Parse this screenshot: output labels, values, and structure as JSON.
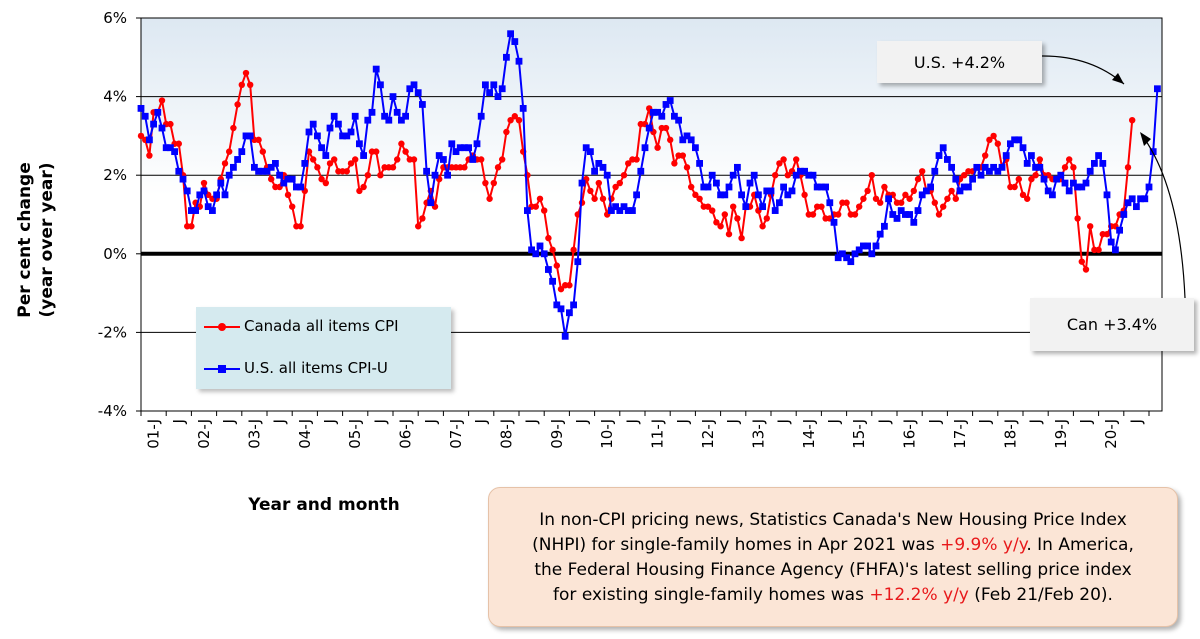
{
  "chart_data": {
    "type": "line",
    "ylabel_lines": [
      "Per cent change",
      "(year over year)"
    ],
    "xlabel": "Year and month",
    "ylim": [
      -4,
      6
    ],
    "ytick_labels": [
      "-4%",
      "-2%",
      "0%",
      "2%",
      "4%",
      "6%"
    ],
    "x_tick_labels": [
      "01-J",
      "02-J",
      "03-J",
      "04-J",
      "05-J",
      "06-J",
      "07-J",
      "08-J",
      "09-J",
      "10-J",
      "11-J",
      "12-J",
      "13-J",
      "14-J",
      "15-J",
      "16-J",
      "17-J",
      "18-J",
      "19-J",
      "20-J",
      "21-J"
    ],
    "x_minor_label": "J",
    "start": "2001-01",
    "end": "2021-04",
    "series": [
      {
        "name": "Canada all items CPI",
        "color": "#ff0000",
        "marker": "circle",
        "values": [
          3.0,
          2.9,
          2.5,
          3.6,
          3.6,
          3.9,
          3.3,
          3.3,
          2.8,
          2.8,
          2.0,
          0.7,
          0.7,
          1.3,
          1.2,
          1.8,
          1.5,
          1.4,
          1.4,
          1.9,
          2.3,
          2.6,
          3.2,
          3.8,
          4.3,
          4.6,
          4.3,
          2.9,
          2.9,
          2.6,
          2.2,
          1.9,
          1.7,
          1.7,
          2.0,
          1.5,
          1.2,
          0.7,
          0.7,
          1.6,
          2.6,
          2.4,
          2.2,
          1.9,
          1.8,
          2.3,
          2.4,
          2.1,
          2.1,
          2.1,
          2.3,
          2.4,
          1.6,
          1.7,
          2.0,
          2.6,
          2.6,
          2.0,
          2.2,
          2.2,
          2.2,
          2.4,
          2.8,
          2.6,
          2.4,
          2.4,
          0.7,
          0.9,
          1.3,
          1.6,
          1.2,
          1.9,
          2.2,
          2.2,
          2.2,
          2.2,
          2.2,
          2.2,
          2.4,
          2.5,
          2.4,
          2.4,
          1.8,
          1.4,
          1.8,
          2.2,
          2.4,
          3.1,
          3.4,
          3.5,
          3.4,
          2.6,
          2.0,
          1.2,
          1.2,
          1.4,
          1.1,
          0.4,
          0.1,
          -0.3,
          -0.9,
          -0.8,
          -0.8,
          0.1,
          1.0,
          1.3,
          1.9,
          1.6,
          1.4,
          1.8,
          1.4,
          1.0,
          1.4,
          1.7,
          1.8,
          2.0,
          2.3,
          2.4,
          2.4,
          3.3,
          3.3,
          3.7,
          3.1,
          2.7,
          3.2,
          3.2,
          2.9,
          2.3,
          2.5,
          2.5,
          2.2,
          1.7,
          1.5,
          1.4,
          1.2,
          1.2,
          1.1,
          0.8,
          0.7,
          1.0,
          0.5,
          1.2,
          0.9,
          0.4,
          1.2,
          1.2,
          1.5,
          1.1,
          0.7,
          0.9,
          1.5,
          2.0,
          2.3,
          2.4,
          2.0,
          2.1,
          2.4,
          2.0,
          1.5,
          1.0,
          1.0,
          1.2,
          1.2,
          0.9,
          0.9,
          1.0,
          1.0,
          1.3,
          1.3,
          1.0,
          1.0,
          1.2,
          1.4,
          1.6,
          2.0,
          1.4,
          1.3,
          1.7,
          1.5,
          1.5,
          1.3,
          1.3,
          1.5,
          1.4,
          1.6,
          1.9,
          2.1,
          1.6,
          1.6,
          1.3,
          1.0,
          1.2,
          1.4,
          1.6,
          1.4,
          1.9,
          2.0,
          2.1,
          2.1,
          2.2,
          2.2,
          2.5,
          2.9,
          3.0,
          2.8,
          2.2,
          2.4,
          1.7,
          1.7,
          1.9,
          1.5,
          1.4,
          1.9,
          2.0,
          2.4,
          2.0,
          2.0,
          1.9,
          1.9,
          1.9,
          2.2,
          2.4,
          2.2,
          0.9,
          -0.2,
          -0.4,
          0.7,
          0.1,
          0.1,
          0.5,
          0.5,
          0.7,
          0.7,
          1.0,
          1.1,
          2.2,
          3.4
        ]
      },
      {
        "name": "U.S. all items CPI-U",
        "color": "#0000ff",
        "marker": "square",
        "values": [
          3.7,
          3.5,
          2.9,
          3.3,
          3.6,
          3.2,
          2.7,
          2.7,
          2.6,
          2.1,
          1.9,
          1.6,
          1.1,
          1.1,
          1.5,
          1.6,
          1.2,
          1.1,
          1.5,
          1.8,
          1.5,
          2.0,
          2.2,
          2.4,
          2.6,
          3.0,
          3.0,
          2.2,
          2.1,
          2.1,
          2.1,
          2.2,
          2.3,
          2.0,
          1.8,
          1.9,
          1.9,
          1.7,
          1.7,
          2.3,
          3.1,
          3.3,
          3.0,
          2.7,
          2.5,
          3.2,
          3.5,
          3.3,
          3.0,
          3.0,
          3.1,
          3.5,
          2.8,
          2.5,
          3.4,
          3.6,
          4.7,
          4.3,
          3.5,
          3.4,
          4.0,
          3.6,
          3.4,
          3.5,
          4.2,
          4.3,
          4.1,
          3.8,
          2.1,
          1.3,
          2.0,
          2.5,
          2.4,
          2.0,
          2.8,
          2.6,
          2.7,
          2.7,
          2.7,
          2.4,
          2.8,
          3.5,
          4.3,
          4.1,
          4.3,
          4.0,
          4.2,
          5.0,
          5.6,
          5.4,
          4.9,
          3.7,
          1.1,
          0.1,
          0.0,
          0.2,
          0.0,
          -0.4,
          -0.7,
          -1.3,
          -1.4,
          -2.1,
          -1.5,
          -1.3,
          -0.2,
          1.8,
          2.7,
          2.6,
          2.1,
          2.3,
          2.2,
          2.0,
          1.1,
          1.2,
          1.1,
          1.2,
          1.1,
          1.1,
          1.5,
          2.1,
          2.7,
          3.2,
          3.6,
          3.6,
          3.5,
          3.8,
          3.9,
          3.5,
          3.4,
          2.9,
          3.0,
          2.9,
          2.7,
          2.3,
          1.7,
          1.7,
          2.0,
          1.8,
          1.5,
          1.5,
          1.7,
          2.0,
          2.2,
          1.5,
          1.2,
          1.8,
          2.0,
          1.5,
          1.2,
          1.6,
          1.6,
          1.1,
          1.3,
          1.7,
          1.5,
          1.6,
          2.0,
          2.1,
          2.1,
          2.0,
          2.0,
          1.7,
          1.7,
          1.7,
          1.3,
          0.8,
          -0.1,
          0.0,
          -0.1,
          -0.2,
          0.0,
          0.1,
          0.2,
          0.2,
          0.0,
          0.2,
          0.5,
          0.7,
          1.4,
          1.0,
          0.9,
          1.1,
          1.0,
          1.0,
          0.8,
          1.1,
          1.5,
          1.6,
          1.7,
          2.1,
          2.5,
          2.7,
          2.4,
          2.2,
          1.9,
          1.6,
          1.7,
          1.7,
          1.9,
          2.2,
          2.0,
          2.2,
          2.1,
          2.2,
          2.1,
          2.2,
          2.5,
          2.8,
          2.9,
          2.9,
          2.7,
          2.3,
          2.5,
          2.2,
          2.2,
          1.9,
          1.6,
          1.5,
          1.9,
          2.0,
          1.8,
          1.6,
          1.8,
          1.7,
          1.7,
          1.8,
          2.1,
          2.3,
          2.5,
          2.3,
          1.5,
          0.3,
          0.1,
          0.6,
          1.0,
          1.3,
          1.4,
          1.2,
          1.4,
          1.4,
          1.7,
          2.6,
          4.2
        ]
      }
    ]
  },
  "callouts": {
    "us": "U.S. +4.2%",
    "can": "Can +3.4%"
  },
  "note": {
    "line1": "In non-CPI pricing news, Statistics Canada's New Housing Price Index",
    "line2_a": "(NHPI) for single-family homes in Apr 2021 was ",
    "line2_hl": "+9.9% y/y",
    "line2_b": ". In America,",
    "line3": "the Federal Housing Finance Agency (FHFA)'s latest selling price index",
    "line4_a": "for existing single-family homes was ",
    "line4_hl": "+12.2% y/y",
    "line4_b": " (Feb 21/Feb 20)."
  }
}
